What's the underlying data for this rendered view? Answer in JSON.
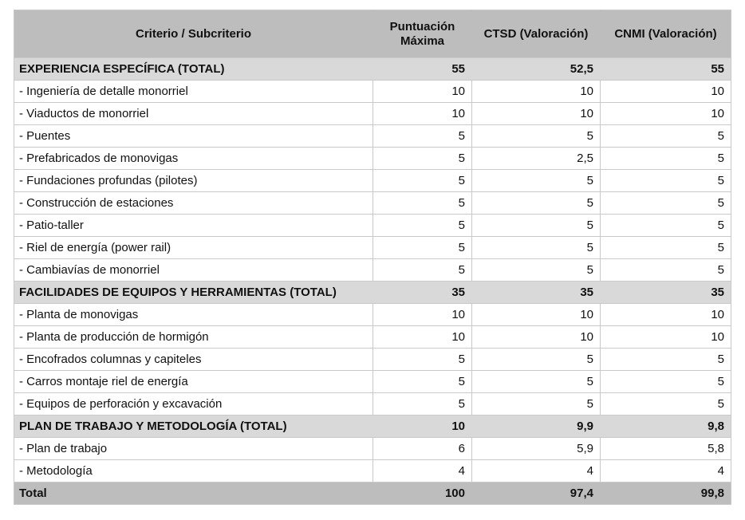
{
  "colors": {
    "header_bg": "#bdbdbd",
    "section_bg": "#d9d9d9",
    "total_bg": "#bdbdbd",
    "border": "#c9c9c9",
    "text": "#111111",
    "page_bg": "#ffffff"
  },
  "table": {
    "columns": [
      {
        "key": "criterio",
        "label": "Criterio / Subcriterio"
      },
      {
        "key": "max",
        "label": "Puntuación Máxima"
      },
      {
        "key": "ctsd",
        "label": "CTSD (Valoración)"
      },
      {
        "key": "cnmi",
        "label": "CNMI (Valoración)"
      }
    ],
    "rows": [
      {
        "type": "section",
        "criterio": "EXPERIENCIA ESPECÍFICA (TOTAL)",
        "max": "55",
        "ctsd": "52,5",
        "cnmi": "55"
      },
      {
        "type": "item",
        "criterio": "- Ingeniería de detalle monorriel",
        "max": "10",
        "ctsd": "10",
        "cnmi": "10"
      },
      {
        "type": "item",
        "criterio": "- Viaductos de monorriel",
        "max": "10",
        "ctsd": "10",
        "cnmi": "10"
      },
      {
        "type": "item",
        "criterio": "- Puentes",
        "max": "5",
        "ctsd": "5",
        "cnmi": "5"
      },
      {
        "type": "item",
        "criterio": "- Prefabricados de monovigas",
        "max": "5",
        "ctsd": "2,5",
        "cnmi": "5"
      },
      {
        "type": "item",
        "criterio": "- Fundaciones profundas (pilotes)",
        "max": "5",
        "ctsd": "5",
        "cnmi": "5"
      },
      {
        "type": "item",
        "criterio": "- Construcción de estaciones",
        "max": "5",
        "ctsd": "5",
        "cnmi": "5"
      },
      {
        "type": "item",
        "criterio": "- Patio-taller",
        "max": "5",
        "ctsd": "5",
        "cnmi": "5"
      },
      {
        "type": "item",
        "criterio": "- Riel de energía (power rail)",
        "max": "5",
        "ctsd": "5",
        "cnmi": "5"
      },
      {
        "type": "item",
        "criterio": "- Cambiavías de monorriel",
        "max": "5",
        "ctsd": "5",
        "cnmi": "5"
      },
      {
        "type": "section",
        "criterio": "FACILIDADES DE EQUIPOS Y HERRAMIENTAS (TOTAL)",
        "max": "35",
        "ctsd": "35",
        "cnmi": "35"
      },
      {
        "type": "item",
        "criterio": "- Planta de monovigas",
        "max": "10",
        "ctsd": "10",
        "cnmi": "10"
      },
      {
        "type": "item",
        "criterio": "- Planta de producción de hormigón",
        "max": "10",
        "ctsd": "10",
        "cnmi": "10"
      },
      {
        "type": "item",
        "criterio": "- Encofrados columnas y capiteles",
        "max": "5",
        "ctsd": "5",
        "cnmi": "5"
      },
      {
        "type": "item",
        "criterio": "- Carros montaje riel de energía",
        "max": "5",
        "ctsd": "5",
        "cnmi": "5"
      },
      {
        "type": "item",
        "criterio": "- Equipos de perforación y excavación",
        "max": "5",
        "ctsd": "5",
        "cnmi": "5"
      },
      {
        "type": "section",
        "criterio": "PLAN DE TRABAJO Y METODOLOGÍA (TOTAL)",
        "max": "10",
        "ctsd": "9,9",
        "cnmi": "9,8"
      },
      {
        "type": "item",
        "criterio": "- Plan de trabajo",
        "max": "6",
        "ctsd": "5,9",
        "cnmi": "5,8"
      },
      {
        "type": "item",
        "criterio": "- Metodología",
        "max": "4",
        "ctsd": "4",
        "cnmi": "4"
      },
      {
        "type": "total",
        "criterio": "Total",
        "max": "100",
        "ctsd": "97,4",
        "cnmi": "99,8"
      }
    ]
  }
}
